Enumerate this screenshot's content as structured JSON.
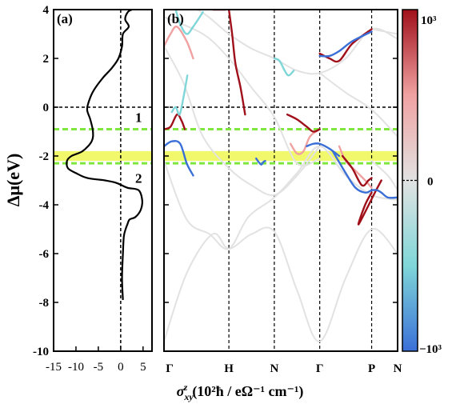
{
  "chart_data": [
    {
      "panel": "(a)",
      "type": "line",
      "ylabel": "Δμ(eV)",
      "xlabel": "σ_xy^z (10² ħ / eΩ⁻¹ cm⁻¹)",
      "xlabel_parts": {
        "sigma": "σ",
        "sub": "xy",
        "sup": "z",
        "units": "(10²ħ / eΩ⁻¹ cm⁻¹)"
      },
      "xlim": [
        -15,
        7
      ],
      "ylim": [
        -10,
        4
      ],
      "xticks": [
        -15,
        -10,
        -5,
        0,
        5
      ],
      "xtick_labels": [
        "-15",
        "-10",
        "-5",
        "0",
        "5"
      ],
      "yticks": [
        4,
        2,
        0,
        -2,
        -4,
        -6,
        -8,
        -10
      ],
      "ytick_labels": [
        "4",
        "2",
        "0",
        "-2",
        "-4",
        "-6",
        "-8",
        "-10"
      ],
      "series": [
        {
          "color": "#000000",
          "points": [
            [
              0.5,
              -7.9
            ],
            [
              0.3,
              -7.0
            ],
            [
              0.5,
              -6.0
            ],
            [
              0.7,
              -5.3
            ],
            [
              1.1,
              -5.0
            ],
            [
              1.5,
              -4.8
            ],
            [
              2.0,
              -4.6
            ],
            [
              3.3,
              -4.5
            ],
            [
              4.5,
              -4.2
            ],
            [
              4.8,
              -3.8
            ],
            [
              4.0,
              -3.4
            ],
            [
              1.5,
              -3.3
            ],
            [
              -1.0,
              -3.1
            ],
            [
              -3.5,
              -3.0
            ],
            [
              -7.5,
              -2.9
            ],
            [
              -10.0,
              -2.7
            ],
            [
              -11.8,
              -2.5
            ],
            [
              -12.0,
              -2.2
            ],
            [
              -11.0,
              -2.0
            ],
            [
              -8.5,
              -1.8
            ],
            [
              -6.5,
              -1.4
            ],
            [
              -6.2,
              -1.0
            ],
            [
              -6.8,
              -0.5
            ],
            [
              -7.5,
              -0.1
            ],
            [
              -7.0,
              0.3
            ],
            [
              -6.0,
              0.7
            ],
            [
              -4.0,
              1.2
            ],
            [
              -2.0,
              1.6
            ],
            [
              -0.5,
              2.0
            ],
            [
              0.3,
              2.5
            ],
            [
              0.5,
              3.0
            ],
            [
              1.8,
              3.3
            ],
            [
              1.0,
              3.6
            ],
            [
              1.6,
              3.9
            ],
            [
              2.5,
              4.0
            ]
          ]
        }
      ],
      "reference_lines": {
        "x": 0,
        "y": 0
      },
      "green_dashed_levels": [
        -0.9,
        -2.3
      ],
      "highlight_band": [
        -1.8,
        -2.2
      ],
      "annotations": [
        {
          "text": "1",
          "x": 4,
          "y": -0.6
        },
        {
          "text": "2",
          "x": 4,
          "y": -3.1
        }
      ],
      "colors": {
        "highlight": "#f2f86c",
        "dashed_green": "#7ee63c"
      }
    },
    {
      "panel": "(b)",
      "type": "line",
      "subtype": "band structure colored by Berry curvature",
      "ylim": [
        -10,
        4
      ],
      "xtick_labels": [
        "Γ",
        "H",
        "N",
        "Γ",
        "P",
        "N"
      ],
      "k_positions": [
        0,
        1.0,
        1.7,
        2.4,
        3.2,
        3.6
      ],
      "colorbar": {
        "max_label": "10³",
        "zero_label": "0",
        "min_label": "−10³",
        "colors": [
          "#3a6fd8",
          "#7fd6d8",
          "#e2e2e2",
          "#f0a1a1",
          "#a0101a"
        ]
      },
      "bands": [
        {
          "color": "#e2e2e2",
          "points": [
            [
              0,
              -9.6
            ],
            [
              0.35,
              -6.8
            ],
            [
              0.75,
              -5.2
            ],
            [
              1.0,
              -5.8
            ],
            [
              1.35,
              -5.2
            ],
            [
              1.7,
              -5.1
            ],
            [
              2.05,
              -7.5
            ],
            [
              2.4,
              -9.6
            ],
            [
              2.8,
              -7.0
            ],
            [
              3.2,
              -5.0
            ],
            [
              3.6,
              -6.0
            ]
          ]
        },
        {
          "color": "#e2e2e2",
          "points": [
            [
              0,
              -2.2
            ],
            [
              0.35,
              -4.6
            ],
            [
              0.7,
              -5.2
            ],
            [
              1.0,
              -5.8
            ],
            [
              1.3,
              -4.5
            ],
            [
              1.7,
              -3.7
            ],
            [
              2.05,
              -2.7
            ],
            [
              2.4,
              -1.6
            ],
            [
              2.8,
              -2.8
            ],
            [
              3.2,
              -3.6
            ],
            [
              3.6,
              -3.8
            ]
          ]
        },
        {
          "color": "#e2e2e2",
          "points": [
            [
              0,
              2.5
            ],
            [
              0.3,
              1.0
            ],
            [
              0.6,
              -1.2
            ],
            [
              1.0,
              -2.5
            ],
            [
              1.35,
              -3.2
            ],
            [
              1.7,
              -3.6
            ],
            [
              2.05,
              -2.8
            ],
            [
              2.4,
              -1.6
            ]
          ]
        },
        {
          "color": "#e2e2e2",
          "points": [
            [
              0,
              3.7
            ],
            [
              0.6,
              3.0
            ],
            [
              1.0,
              2.0
            ],
            [
              1.35,
              0.8
            ],
            [
              1.7,
              -0.4
            ],
            [
              2.05,
              -2.3
            ],
            [
              2.4,
              -2.1
            ]
          ]
        },
        {
          "color": "#e2e2e2",
          "points": [
            [
              0,
              4.0
            ],
            [
              0.5,
              4.0
            ],
            [
              1.0,
              3.0
            ],
            [
              1.35,
              2.4
            ],
            [
              1.7,
              2.0
            ],
            [
              2.05,
              1.5
            ],
            [
              2.4,
              1.4
            ],
            [
              2.8,
              2.0
            ],
            [
              3.2,
              3.2
            ],
            [
              3.6,
              2.8
            ]
          ]
        },
        {
          "color": "#e2e2e2",
          "points": [
            [
              2.4,
              1.4
            ],
            [
              2.8,
              0.6
            ],
            [
              3.2,
              -0.1
            ],
            [
              3.6,
              -1.2
            ]
          ]
        },
        {
          "color": "#e2e2e2",
          "points": [
            [
              3.2,
              -2.2
            ],
            [
              3.45,
              -2.8
            ],
            [
              3.6,
              -3.4
            ]
          ]
        },
        {
          "color": "#e2e2e2",
          "points": [
            [
              3.2,
              3.2
            ],
            [
              3.4,
              3.1
            ],
            [
              3.6,
              3.0
            ]
          ]
        },
        {
          "color": "#a0101a",
          "points": [
            [
              0,
              -0.9
            ],
            [
              0.1,
              -0.8
            ],
            [
              0.2,
              -0.3
            ],
            [
              0.27,
              -0.55
            ],
            [
              0.32,
              -0.9
            ]
          ]
        },
        {
          "color": "#3a6fd8",
          "points": [
            [
              0,
              -1.6
            ],
            [
              0.12,
              -1.4
            ],
            [
              0.25,
              -1.5
            ],
            [
              0.35,
              -2.3
            ],
            [
              0.45,
              -2.8
            ]
          ]
        },
        {
          "color": "#7fd6d8",
          "points": [
            [
              0.12,
              -0.2
            ],
            [
              0.18,
              0.0
            ],
            [
              0.24,
              -0.3
            ],
            [
              0.3,
              0.4
            ],
            [
              0.36,
              1.3
            ]
          ]
        },
        {
          "color": "#f0a1a1",
          "points": [
            [
              0,
              2.5
            ],
            [
              0.1,
              3.0
            ],
            [
              0.2,
              3.3
            ],
            [
              0.35,
              2.7
            ],
            [
              0.45,
              2.0
            ]
          ]
        },
        {
          "color": "#7fd6d8",
          "points": [
            [
              0.6,
              3.9
            ],
            [
              0.45,
              3.3
            ],
            [
              0.35,
              3.0
            ],
            [
              0.25,
              3.4
            ],
            [
              0.18,
              4.0
            ]
          ]
        },
        {
          "color": "#a0101a",
          "points": [
            [
              0.75,
              4.0
            ],
            [
              0.8,
              4.0
            ],
            [
              0.85,
              4.0
            ],
            [
              0.9,
              4.0
            ],
            [
              0.95,
              4.0
            ]
          ]
        },
        {
          "color": "#a0101a",
          "points": [
            [
              1.0,
              4.0
            ],
            [
              1.05,
              3.0
            ],
            [
              1.1,
              1.8
            ],
            [
              1.18,
              0.8
            ],
            [
              1.25,
              -0.3
            ]
          ]
        },
        {
          "color": "#3a6fd8",
          "points": [
            [
              1.42,
              -2.1
            ],
            [
              1.46,
              -2.25
            ],
            [
              1.5,
              -2.35
            ],
            [
              1.53,
              -2.25
            ],
            [
              1.56,
              -2.2
            ]
          ]
        },
        {
          "color": "#7fd6d8",
          "points": [
            [
              1.7,
              2.0
            ],
            [
              1.78,
              1.9
            ],
            [
              1.86,
              1.5
            ],
            [
              1.92,
              1.3
            ],
            [
              2.0,
              1.5
            ]
          ]
        },
        {
          "color": "#f0a1a1",
          "points": [
            [
              1.95,
              -1.5
            ],
            [
              2.05,
              -1.9
            ],
            [
              2.15,
              -1.8
            ],
            [
              2.25,
              -1.2
            ],
            [
              2.4,
              -0.9
            ]
          ]
        },
        {
          "color": "#a0101a",
          "points": [
            [
              1.9,
              -0.3
            ],
            [
              2.05,
              -0.5
            ],
            [
              2.2,
              -0.8
            ],
            [
              2.3,
              -1.0
            ],
            [
              2.4,
              -0.9
            ]
          ]
        },
        {
          "color": "#3a6fd8",
          "points": [
            [
              2.2,
              -1.6
            ],
            [
              2.3,
              -1.5
            ],
            [
              2.4,
              -1.5
            ],
            [
              2.55,
              -1.7
            ],
            [
              2.7,
              -2.0
            ]
          ]
        },
        {
          "color": "#a0101a",
          "points": [
            [
              2.4,
              2.2
            ],
            [
              2.55,
              2.0
            ],
            [
              2.7,
              1.9
            ],
            [
              2.9,
              2.6
            ],
            [
              3.2,
              3.2
            ]
          ]
        },
        {
          "color": "#3a6fd8",
          "points": [
            [
              2.4,
              2.1
            ],
            [
              2.55,
              2.1
            ],
            [
              2.7,
              2.3
            ],
            [
              2.9,
              2.7
            ],
            [
              3.2,
              3.1
            ]
          ]
        },
        {
          "color": "#f0a1a1",
          "points": [
            [
              2.7,
              -1.6
            ],
            [
              2.8,
              -2.2
            ],
            [
              2.95,
              -2.6
            ],
            [
              3.1,
              -3.0
            ],
            [
              3.2,
              -3.3
            ]
          ]
        },
        {
          "color": "#a0101a",
          "points": [
            [
              2.75,
              -2.0
            ],
            [
              2.9,
              -2.5
            ],
            [
              3.05,
              -3.2
            ],
            [
              3.15,
              -3.0
            ],
            [
              3.2,
              -2.9
            ]
          ]
        },
        {
          "color": "#3a6fd8",
          "points": [
            [
              2.6,
              -1.8
            ],
            [
              2.8,
              -2.7
            ],
            [
              2.95,
              -3.3
            ],
            [
              3.1,
              -3.5
            ],
            [
              3.2,
              -3.4
            ]
          ]
        },
        {
          "color": "#a0101a",
          "points": [
            [
              3.2,
              -3.5
            ],
            [
              3.1,
              -4.0
            ],
            [
              3.0,
              -4.8
            ],
            [
              3.25,
              -3.5
            ],
            [
              3.35,
              -3.0
            ]
          ]
        },
        {
          "color": "#3a6fd8",
          "points": [
            [
              3.2,
              -3.4
            ],
            [
              3.28,
              -3.4
            ],
            [
              3.35,
              -3.5
            ],
            [
              3.45,
              -3.7
            ],
            [
              3.6,
              -3.7
            ]
          ]
        }
      ]
    }
  ]
}
